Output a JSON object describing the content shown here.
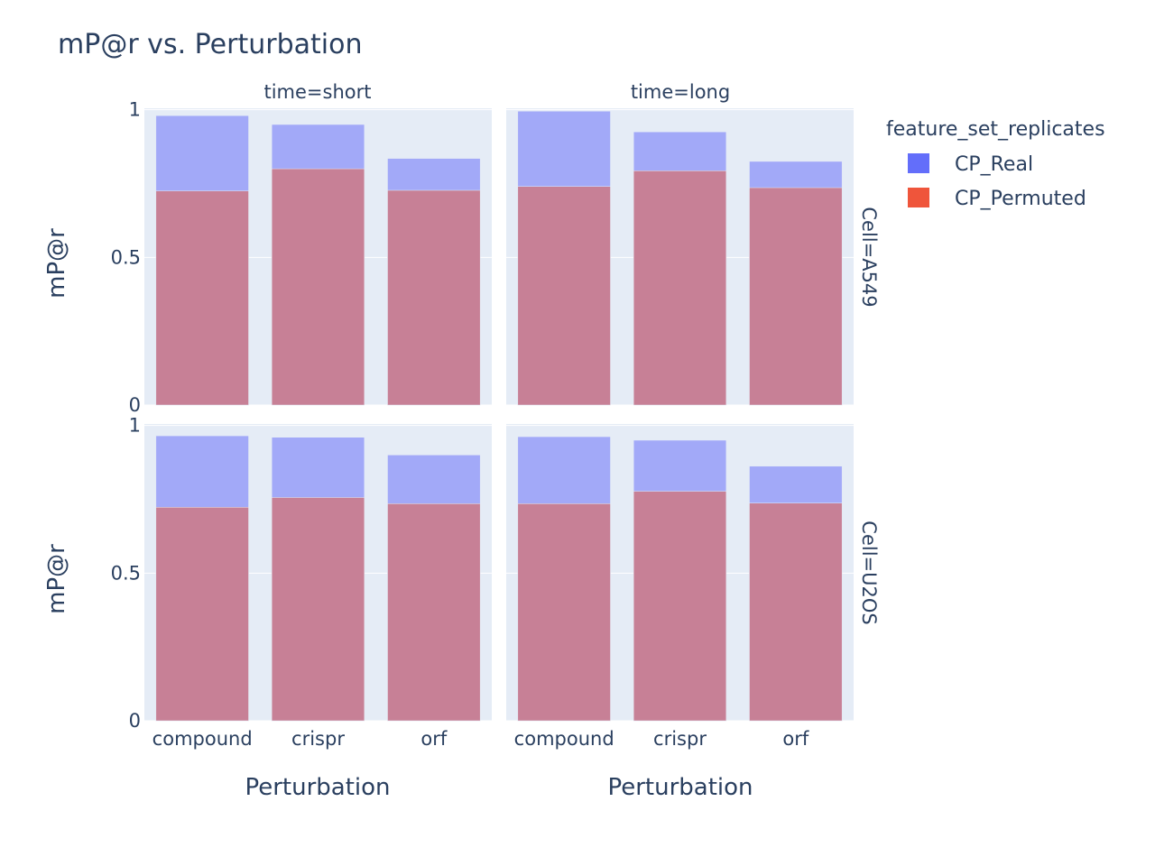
{
  "chart_data": {
    "type": "bar",
    "title": "mP@r vs. Perturbation",
    "barmode": "overlay",
    "categories": [
      "compound",
      "crispr",
      "orf"
    ],
    "xlabel": "Perturbation",
    "ylabel": "mP@r",
    "ylim": [
      0,
      1.005
    ],
    "yticks": [
      "0",
      "0.5",
      "1"
    ],
    "grid": true,
    "legend": {
      "title": "feature_set_replicates",
      "placement": "top-right",
      "items": [
        {
          "name": "CP_Real",
          "color": "#636efa"
        },
        {
          "name": "CP_Permuted",
          "color": "#EF553B"
        }
      ]
    },
    "col_facets": [
      "time=short",
      "time=long"
    ],
    "row_facets": [
      "Cell=A549",
      "Cell=U2OS"
    ],
    "panels": [
      {
        "row": 0,
        "col": 0,
        "series": [
          {
            "name": "CP_Real",
            "values": [
              0.98,
              0.95,
              0.835
            ]
          },
          {
            "name": "CP_Permuted",
            "values": [
              0.725,
              0.8,
              0.727
            ]
          }
        ]
      },
      {
        "row": 0,
        "col": 1,
        "series": [
          {
            "name": "CP_Real",
            "values": [
              0.995,
              0.925,
              0.825
            ]
          },
          {
            "name": "CP_Permuted",
            "values": [
              0.74,
              0.793,
              0.736
            ]
          }
        ]
      },
      {
        "row": 1,
        "col": 0,
        "series": [
          {
            "name": "CP_Real",
            "values": [
              0.965,
              0.96,
              0.9
            ]
          },
          {
            "name": "CP_Permuted",
            "values": [
              0.723,
              0.756,
              0.735
            ]
          }
        ]
      },
      {
        "row": 1,
        "col": 1,
        "series": [
          {
            "name": "CP_Real",
            "values": [
              0.962,
              0.95,
              0.862
            ]
          },
          {
            "name": "CP_Permuted",
            "values": [
              0.735,
              0.777,
              0.737
            ]
          }
        ]
      }
    ]
  },
  "colors": {
    "plot_bg": "#e5ecf6",
    "grid": "#ffffff",
    "text": "#2a3f5f",
    "real_bar": "#a2a9f8",
    "permuted_bar": "#c78096"
  }
}
